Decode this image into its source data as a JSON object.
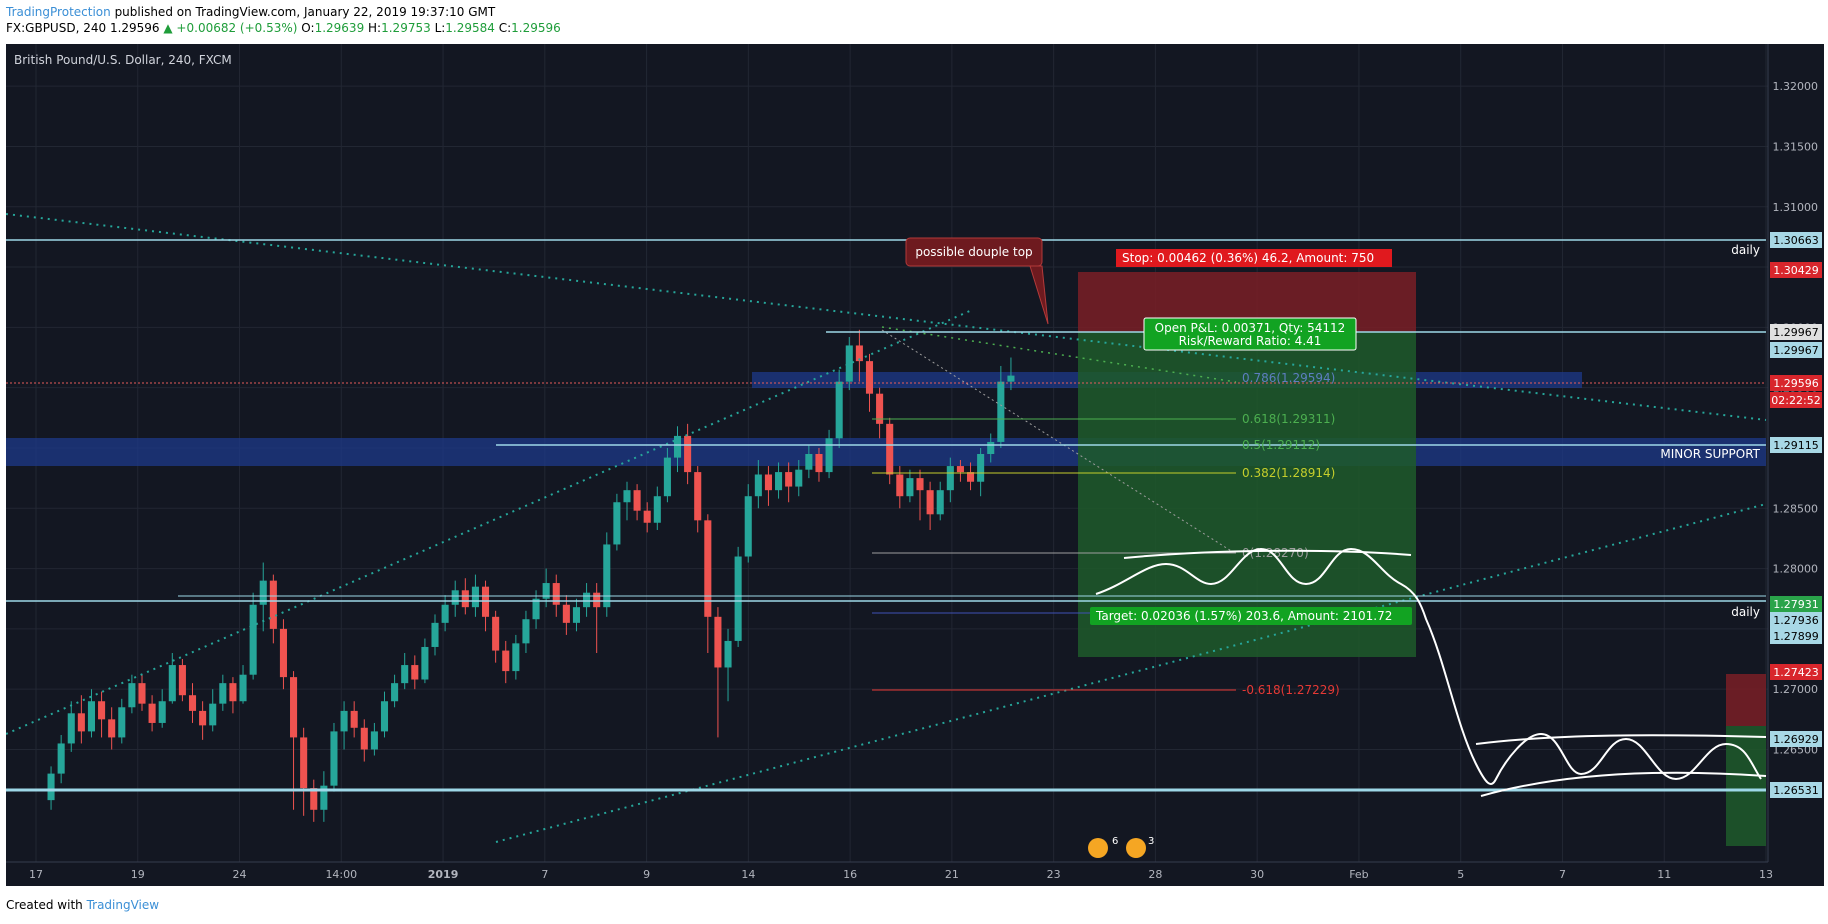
{
  "header": {
    "brand": "TradingProtection",
    "published": " published on TradingView.com, January 22, 2019 19:37:10 GMT",
    "symbol": "FX:GBPUSD, 240",
    "last": "1.29596",
    "change": "▲ +0.00682 (+0.53%)",
    "o_label": "O:",
    "o": "1.29639",
    "h_label": "H:",
    "h": "1.29753",
    "l_label": "L:",
    "l": "1.29584",
    "c_label": "C:",
    "c": "1.29596"
  },
  "footer": {
    "created": "Created with ",
    "brand": "TradingView"
  },
  "chart_data": {
    "type": "candlestick",
    "title": "British Pound/U.S. Dollar, 240, FXCM",
    "ylim": [
      1.2565,
      1.3225
    ],
    "y_ticks": [
      "1.32000",
      "1.31500",
      "1.31000",
      "1.30500",
      "1.30000",
      "1.29500",
      "1.29000",
      "1.28500",
      "1.28000",
      "1.27500",
      "1.27000",
      "1.26500"
    ],
    "x_ticks": [
      "17",
      "19",
      "24",
      "14:00",
      "2019",
      "7",
      "9",
      "14",
      "16",
      "21",
      "23",
      "28",
      "30",
      "Feb",
      "5",
      "7",
      "11",
      "13"
    ],
    "candles": [
      [
        1.2608,
        1.263,
        1.26,
        1.2636
      ],
      [
        1.263,
        1.2655,
        1.2622,
        1.2662
      ],
      [
        1.2655,
        1.268,
        1.2648,
        1.269
      ],
      [
        1.268,
        1.2665,
        1.2655,
        1.2695
      ],
      [
        1.2665,
        1.269,
        1.266,
        1.27
      ],
      [
        1.269,
        1.2675,
        1.266,
        1.2698
      ],
      [
        1.2675,
        1.266,
        1.265,
        1.2685
      ],
      [
        1.266,
        1.2685,
        1.2655,
        1.2692
      ],
      [
        1.2685,
        1.2705,
        1.268,
        1.2712
      ],
      [
        1.2705,
        1.2688,
        1.2682,
        1.2712
      ],
      [
        1.2688,
        1.2672,
        1.2665,
        1.2695
      ],
      [
        1.2672,
        1.269,
        1.2668,
        1.27
      ],
      [
        1.269,
        1.272,
        1.2688,
        1.273
      ],
      [
        1.272,
        1.2695,
        1.269,
        1.2725
      ],
      [
        1.2695,
        1.2682,
        1.2672,
        1.2705
      ],
      [
        1.2682,
        1.267,
        1.2658,
        1.269
      ],
      [
        1.267,
        1.2688,
        1.2665,
        1.27
      ],
      [
        1.2688,
        1.2705,
        1.2682,
        1.2712
      ],
      [
        1.2705,
        1.269,
        1.268,
        1.271
      ],
      [
        1.269,
        1.2712,
        1.2688,
        1.272
      ],
      [
        1.2712,
        1.277,
        1.2708,
        1.278
      ],
      [
        1.277,
        1.279,
        1.2748,
        1.2805
      ],
      [
        1.279,
        1.275,
        1.2738,
        1.2795
      ],
      [
        1.275,
        1.271,
        1.27,
        1.2758
      ],
      [
        1.271,
        1.266,
        1.26,
        1.2715
      ],
      [
        1.266,
        1.2618,
        1.2595,
        1.2668
      ],
      [
        1.2618,
        1.26,
        1.259,
        1.2625
      ],
      [
        1.26,
        1.262,
        1.259,
        1.2632
      ],
      [
        1.262,
        1.2665,
        1.2615,
        1.2672
      ],
      [
        1.2665,
        1.2682,
        1.265,
        1.269
      ],
      [
        1.2682,
        1.2668,
        1.266,
        1.269
      ],
      [
        1.2668,
        1.265,
        1.264,
        1.2675
      ],
      [
        1.265,
        1.2665,
        1.2645,
        1.2672
      ],
      [
        1.2665,
        1.269,
        1.266,
        1.2698
      ],
      [
        1.269,
        1.2705,
        1.2685,
        1.2712
      ],
      [
        1.2705,
        1.272,
        1.27,
        1.273
      ],
      [
        1.272,
        1.2708,
        1.27,
        1.2728
      ],
      [
        1.2708,
        1.2735,
        1.2705,
        1.2742
      ],
      [
        1.2735,
        1.2755,
        1.2728,
        1.2762
      ],
      [
        1.2755,
        1.277,
        1.2748,
        1.2778
      ],
      [
        1.277,
        1.2782,
        1.276,
        1.279
      ],
      [
        1.2782,
        1.2768,
        1.2762,
        1.2792
      ],
      [
        1.2768,
        1.2785,
        1.276,
        1.2795
      ],
      [
        1.2785,
        1.276,
        1.2748,
        1.279
      ],
      [
        1.276,
        1.2732,
        1.2722,
        1.2765
      ],
      [
        1.2732,
        1.2715,
        1.2705,
        1.274
      ],
      [
        1.2715,
        1.2738,
        1.2708,
        1.2745
      ],
      [
        1.2738,
        1.2758,
        1.273,
        1.2765
      ],
      [
        1.2758,
        1.2775,
        1.275,
        1.2782
      ],
      [
        1.2775,
        1.2788,
        1.2768,
        1.28
      ],
      [
        1.2788,
        1.277,
        1.276,
        1.2795
      ],
      [
        1.277,
        1.2755,
        1.2745,
        1.2778
      ],
      [
        1.2755,
        1.2768,
        1.2748,
        1.2775
      ],
      [
        1.2768,
        1.278,
        1.276,
        1.2788
      ],
      [
        1.278,
        1.2768,
        1.273,
        1.2788
      ],
      [
        1.2768,
        1.282,
        1.276,
        1.283
      ],
      [
        1.282,
        1.2855,
        1.2815,
        1.2862
      ],
      [
        1.2855,
        1.2865,
        1.284,
        1.2872
      ],
      [
        1.2865,
        1.2848,
        1.284,
        1.287
      ],
      [
        1.2848,
        1.2838,
        1.283,
        1.2855
      ],
      [
        1.2838,
        1.286,
        1.2832,
        1.2868
      ],
      [
        1.286,
        1.2892,
        1.2855,
        1.29
      ],
      [
        1.2892,
        1.291,
        1.288,
        1.2918
      ],
      [
        1.291,
        1.288,
        1.287,
        1.292
      ],
      [
        1.288,
        1.284,
        1.283,
        1.2885
      ],
      [
        1.284,
        1.276,
        1.273,
        1.2845
      ],
      [
        1.276,
        1.2718,
        1.266,
        1.2768
      ],
      [
        1.2718,
        1.274,
        1.269,
        1.275
      ],
      [
        1.274,
        1.281,
        1.2735,
        1.2818
      ],
      [
        1.281,
        1.286,
        1.2805,
        1.287
      ],
      [
        1.286,
        1.2878,
        1.285,
        1.289
      ],
      [
        1.2878,
        1.2865,
        1.2852,
        1.2885
      ],
      [
        1.2865,
        1.288,
        1.2858,
        1.2888
      ],
      [
        1.288,
        1.2868,
        1.2855,
        1.2888
      ],
      [
        1.2868,
        1.2882,
        1.286,
        1.289
      ],
      [
        1.2882,
        1.2895,
        1.2875,
        1.2902
      ],
      [
        1.2895,
        1.288,
        1.2872,
        1.29
      ],
      [
        1.288,
        1.2908,
        1.2875,
        1.2915
      ],
      [
        1.2908,
        1.2955,
        1.29,
        1.2965
      ],
      [
        1.2955,
        1.2985,
        1.2948,
        1.2992
      ],
      [
        1.2985,
        1.2972,
        1.2955,
        1.2998
      ],
      [
        1.2972,
        1.2945,
        1.293,
        1.2978
      ],
      [
        1.2945,
        1.292,
        1.2908,
        1.295
      ],
      [
        1.292,
        1.2878,
        1.287,
        1.2925
      ],
      [
        1.2878,
        1.286,
        1.285,
        1.2885
      ],
      [
        1.286,
        1.2875,
        1.2855,
        1.2882
      ],
      [
        1.2875,
        1.2865,
        1.284,
        1.2882
      ],
      [
        1.2865,
        1.2845,
        1.2832,
        1.2872
      ],
      [
        1.2845,
        1.2865,
        1.284,
        1.2872
      ],
      [
        1.2865,
        1.2885,
        1.2855,
        1.2892
      ],
      [
        1.2885,
        1.288,
        1.2872,
        1.289
      ],
      [
        1.288,
        1.2872,
        1.2865,
        1.2888
      ],
      [
        1.2872,
        1.2895,
        1.286,
        1.29
      ],
      [
        1.2895,
        1.2905,
        1.2888,
        1.2912
      ],
      [
        1.2905,
        1.2955,
        1.29,
        1.2968
      ],
      [
        1.2955,
        1.296,
        1.2948,
        1.2975
      ]
    ],
    "horizontal_levels": [
      {
        "label": "1.30663",
        "note": "daily"
      },
      {
        "label": "1.29967"
      },
      {
        "label": "1.29115",
        "note": "MINOR SUPPORT"
      },
      {
        "label": "1.27931",
        "note": "daily"
      },
      {
        "label": "1.26531"
      }
    ],
    "fibonacci": [
      {
        "text": "0.786(1.29594)",
        "color": "#5d7ebf"
      },
      {
        "text": "0.618(1.29311)",
        "color": "#4caf50"
      },
      {
        "text": "0.5(1.29112)",
        "color": "#4caf50"
      },
      {
        "text": "0.382(1.28914)",
        "color": "#c5ce2c"
      },
      {
        "text": "0(1.28270)",
        "color": "#9e9e9e"
      },
      {
        "text": "-0.618(1.27229)",
        "color": "#e53935"
      }
    ],
    "price_tags": [
      {
        "text": "1.32000"
      },
      {
        "text": "1.31500"
      },
      {
        "text": "1.31000"
      },
      {
        "text": "1.30663",
        "bg": "#a8d8e6",
        "fg": "#000000"
      },
      {
        "text": "1.30500"
      },
      {
        "text": "1.30429",
        "bg": "#d8262c",
        "fg": "#ffffff"
      },
      {
        "text": "1.29967",
        "bg": "#e0e0e0",
        "fg": "#000000"
      },
      {
        "text": "1.29967",
        "bg": "#a8d8e6",
        "fg": "#000000"
      },
      {
        "text": "1.29596",
        "bg": "#d8262c",
        "fg": "#ffffff"
      },
      {
        "text": "02:22:52",
        "bg": "#d8262c",
        "fg": "#ffffff"
      },
      {
        "text": "1.29115",
        "bg": "#a8d8e6",
        "fg": "#000000"
      },
      {
        "text": "1.29000"
      },
      {
        "text": "1.28500"
      },
      {
        "text": "1.28000"
      },
      {
        "text": "1.27931",
        "bg": "#2aa34a",
        "fg": "#ffffff"
      },
      {
        "text": "1.27936",
        "bg": "#a8d8e6",
        "fg": "#000000"
      },
      {
        "text": "1.27899",
        "bg": "#a8d8e6",
        "fg": "#000000"
      },
      {
        "text": "1.27500"
      },
      {
        "text": "1.27423",
        "bg": "#d8262c",
        "fg": "#ffffff"
      },
      {
        "text": "1.27000"
      },
      {
        "text": "1.26929",
        "bg": "#a8d8e6",
        "fg": "#000000"
      },
      {
        "text": "1.26531",
        "bg": "#a8d8e6",
        "fg": "#000000"
      }
    ],
    "position": {
      "stop_text": "Stop: 0.00462 (0.36%) 46.2, Amount: 750",
      "pnl_line1": "Open P&L: 0.00371, Qty: 54112",
      "pnl_line2": "Risk/Reward Ratio: 4.41",
      "target_text": "Target: 0.02036 (1.57%) 203.6, Amount: 2101.72"
    },
    "annotation": "possible douple top",
    "event_badges": [
      "6",
      "3"
    ],
    "colors": {
      "background": "#131722",
      "up": "#26a69a",
      "down": "#ef5350",
      "grid": "#222733",
      "level": "#9ed8e8",
      "support_zone": "#1e3a8a",
      "loss": "#7a1f26",
      "profit": "#1f5a2a"
    }
  }
}
